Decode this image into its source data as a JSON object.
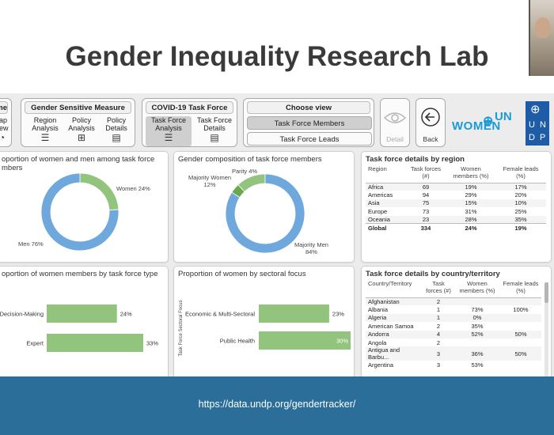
{
  "slide": {
    "title": "Gender Inequality Research Lab",
    "url": "https://data.undp.org/gendertracker/"
  },
  "colors": {
    "green": "#93c47d",
    "blue": "#6fa8dc",
    "footer": "#2b6e9a"
  },
  "nav": {
    "partial_group": {
      "title": "me",
      "button_label_line1": "ap",
      "button_label_line2": "ew"
    },
    "gender_measure": {
      "title": "Gender Sensitive Measure",
      "buttons": [
        {
          "line1": "Region",
          "line2": "Analysis",
          "icon": "bar-list-icon"
        },
        {
          "line1": "Policy",
          "line2": "Analysis",
          "icon": "hierarchy-icon"
        },
        {
          "line1": "Policy",
          "line2": "Details",
          "icon": "document-icon"
        }
      ]
    },
    "covid": {
      "title": "COVID-19 Task Force",
      "buttons": [
        {
          "line1": "Task Force",
          "line2": "Analysis",
          "icon": "bar-list-icon"
        },
        {
          "line1": "Task Force",
          "line2": "Details",
          "icon": "document-icon"
        }
      ]
    },
    "choose_view": {
      "title": "Choose view",
      "options": [
        "Task Force Members",
        "Task Force Leads"
      ],
      "selected": "Task Force Members"
    },
    "detail_label": "Detail",
    "back_label": "Back"
  },
  "logos": {
    "unwomen_top": "UN",
    "unwomen_bottom": "WOMEN",
    "undp": [
      "U",
      "N",
      "D",
      "P"
    ]
  },
  "chart_data": [
    {
      "type": "pie",
      "title": "oportion of women and men among task force members",
      "title_line1": "oportion of women and men among task force",
      "title_line2": "mbers",
      "slices": [
        {
          "label": "Women",
          "value": 24,
          "label_text": "Women 24%"
        },
        {
          "label": "Men",
          "value": 76,
          "label_text": "Men 76%"
        }
      ]
    },
    {
      "type": "pie",
      "title": "Gender composition of task force members",
      "slices": [
        {
          "label": "Parity",
          "value": 4,
          "label_text": "Parity 4%"
        },
        {
          "label": "Majority Women",
          "value": 12,
          "label_line1": "Majority Women",
          "label_line2": "12%"
        },
        {
          "label": "Majority Men",
          "value": 84,
          "label_line1": "Majority Men",
          "label_line2": "84%"
        }
      ]
    },
    {
      "type": "bar",
      "title": "oportion of women members by task force type",
      "categories": [
        "Decision-Making",
        "Expert"
      ],
      "values": [
        24,
        33
      ],
      "value_labels": [
        "24%",
        "33%"
      ]
    },
    {
      "type": "bar",
      "title": "Proportion of women by sectoral focus",
      "ylabel": "Task Force Sectoral Focus",
      "categories": [
        "Economic & Multi-Sectoral",
        "Public Health"
      ],
      "values": [
        23,
        30
      ],
      "value_labels": [
        "23%",
        "30%"
      ]
    }
  ],
  "region_table": {
    "title": "Task force details by region",
    "headers": [
      "Region",
      "Task forces (#)",
      "Women members (%)",
      "Female leads (%)"
    ],
    "rows": [
      [
        "Africa",
        "69",
        "19%",
        "17%"
      ],
      [
        "Americas",
        "94",
        "29%",
        "20%"
      ],
      [
        "Asia",
        "75",
        "15%",
        "10%"
      ],
      [
        "Europe",
        "73",
        "31%",
        "25%"
      ],
      [
        "Oceania",
        "23",
        "28%",
        "35%"
      ]
    ],
    "total": [
      "Global",
      "334",
      "24%",
      "19%"
    ]
  },
  "country_table": {
    "title": "Task force details by country/territory",
    "headers": [
      "Country/Territory",
      "Task forces (#)",
      "Women members (%)",
      "Female leads (%)"
    ],
    "rows": [
      [
        "Afghanistan",
        "2",
        "",
        ""
      ],
      [
        "Albania",
        "1",
        "73%",
        "100%"
      ],
      [
        "Algeria",
        "1",
        "0%",
        ""
      ],
      [
        "American Samoa",
        "2",
        "35%",
        ""
      ],
      [
        "Andorra",
        "4",
        "52%",
        "50%"
      ],
      [
        "Angola",
        "2",
        "",
        ""
      ],
      [
        "Antigua and Barbu...",
        "3",
        "36%",
        "50%"
      ],
      [
        "Argentina",
        "3",
        "53%",
        ""
      ]
    ]
  }
}
